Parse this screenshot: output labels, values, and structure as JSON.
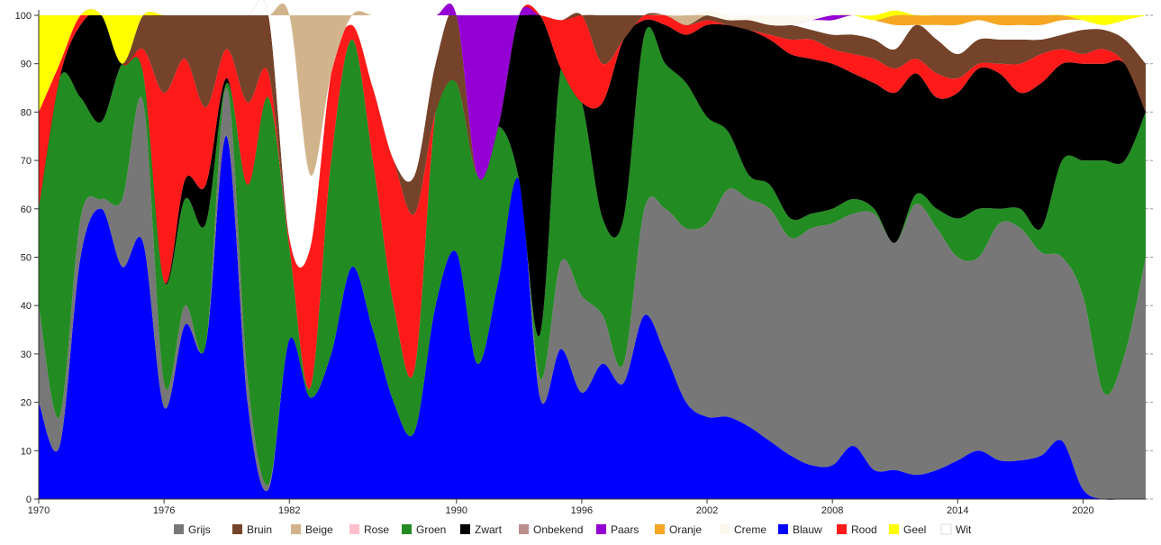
{
  "chart_data": {
    "type": "stacked_area",
    "x": [
      1970,
      1971,
      1972,
      1973,
      1974,
      1975,
      1976,
      1977,
      1978,
      1979,
      1980,
      1981,
      1982,
      1983,
      1984,
      1985,
      1986,
      1987,
      1988,
      1989,
      1990,
      1991,
      1992,
      1993,
      1994,
      1995,
      1996,
      1997,
      1998,
      1999,
      2000,
      2001,
      2002,
      2003,
      2004,
      2005,
      2006,
      2007,
      2008,
      2009,
      2010,
      2011,
      2012,
      2013,
      2014,
      2015,
      2016,
      2017,
      2018,
      2019,
      2020,
      2021,
      2022,
      2023
    ],
    "xlim": [
      1970,
      2023
    ],
    "xticks": [
      1970,
      1976,
      1982,
      1990,
      1996,
      2002,
      2008,
      2014,
      2020
    ],
    "ylim": [
      0,
      100
    ],
    "yticks": [
      0,
      10,
      20,
      30,
      40,
      50,
      60,
      70,
      80,
      90,
      100
    ],
    "legend": "bottom",
    "series": [
      {
        "name": "Grijs",
        "color": "#777777",
        "values": [
          20,
          6,
          8,
          2,
          14,
          29,
          5,
          4,
          0,
          10,
          5,
          1,
          0,
          0,
          0,
          0,
          0,
          0,
          0,
          0,
          0,
          0,
          0,
          0,
          4,
          18,
          20,
          10,
          4,
          22,
          30,
          36,
          40,
          47,
          47,
          48,
          45,
          49,
          50,
          48,
          53,
          47,
          56,
          50,
          42,
          40,
          49,
          48,
          42,
          38,
          40,
          22,
          30,
          50
        ]
      },
      {
        "name": "Bruin",
        "color": "#74432a",
        "values": [
          0,
          0,
          0,
          0,
          0,
          7,
          16,
          9,
          19,
          7,
          18,
          12,
          0,
          0,
          0,
          0,
          0,
          0,
          8,
          10,
          14,
          0,
          0,
          0,
          0,
          0,
          0,
          10,
          5,
          0,
          0,
          0,
          1,
          1,
          2,
          2,
          3,
          2,
          3,
          4,
          4,
          4,
          7,
          7,
          5,
          5,
          5,
          5,
          3,
          3,
          5,
          4,
          5,
          10
        ]
      },
      {
        "name": "Beige",
        "color": "#d2b48c",
        "values": [
          0,
          0,
          0,
          0,
          0,
          0,
          0,
          0,
          0,
          0,
          0,
          0,
          0,
          33,
          12,
          0,
          0,
          0,
          0,
          0,
          0,
          0,
          0,
          0,
          0,
          0,
          0,
          0,
          0,
          0,
          0,
          2,
          0,
          0,
          0,
          0,
          0,
          0,
          0,
          0,
          0,
          0,
          0,
          0,
          0,
          0,
          0,
          0,
          0,
          0,
          0,
          0,
          0,
          0
        ]
      },
      {
        "name": "Rose",
        "color": "#ffc0cb",
        "values": [
          0,
          0,
          0,
          0,
          0,
          0,
          0,
          0,
          0,
          0,
          0,
          0,
          0,
          0,
          0,
          0,
          0,
          0,
          0,
          0,
          0,
          0,
          0,
          0,
          0,
          0,
          0,
          0,
          0,
          0,
          0,
          0,
          0,
          0,
          0,
          0,
          0,
          0,
          0,
          0,
          0,
          0,
          0,
          0,
          0,
          0,
          0,
          0,
          0,
          0,
          0,
          0,
          0,
          0
        ]
      },
      {
        "name": "Groen",
        "color": "#228b22",
        "values": [
          20,
          70,
          25,
          16,
          28,
          6,
          21,
          22,
          25,
          1,
          40,
          80,
          19,
          2,
          40,
          47,
          35,
          20,
          13,
          40,
          35,
          39,
          32,
          0,
          9,
          40,
          40,
          20,
          30,
          36,
          30,
          30,
          22,
          12,
          5,
          5,
          4,
          3,
          3,
          3,
          1,
          0,
          2,
          4,
          8,
          10,
          3,
          4,
          5,
          20,
          28,
          48,
          40,
          30
        ]
      },
      {
        "name": "Zwart",
        "color": "#000000",
        "values": [
          0,
          0,
          15,
          22,
          0,
          0,
          0,
          4,
          8,
          1,
          0,
          0,
          0,
          0,
          0,
          0,
          0,
          0,
          0,
          0,
          0,
          0,
          0,
          34,
          66,
          0,
          0,
          24,
          37,
          3,
          8,
          10,
          19,
          22,
          30,
          30,
          34,
          32,
          30,
          26,
          26,
          31,
          25,
          23,
          26,
          29,
          28,
          24,
          30,
          20,
          20,
          20,
          20,
          0
        ]
      },
      {
        "name": "Onbekend",
        "color": "#bc8f8f",
        "values": [
          0,
          0,
          0,
          0,
          0,
          0,
          0,
          0,
          0,
          0,
          0,
          0,
          0,
          0,
          0,
          0,
          0,
          0,
          0,
          0,
          0,
          0,
          0,
          0,
          0,
          0,
          0,
          0,
          0,
          0,
          0,
          0,
          0,
          0,
          0,
          0,
          0,
          0,
          0,
          0,
          0,
          0,
          0,
          0,
          0,
          0,
          0,
          0,
          0,
          0,
          0,
          0,
          0,
          0
        ]
      },
      {
        "name": "Paars",
        "color": "#9400d3",
        "values": [
          0,
          0,
          0,
          0,
          0,
          0,
          0,
          0,
          0,
          0,
          0,
          0,
          0,
          0,
          0,
          0,
          0,
          0,
          0,
          0,
          0,
          33,
          23,
          0,
          0,
          0,
          0,
          0,
          0,
          0,
          0,
          0,
          0,
          0,
          0,
          0,
          0,
          0,
          1,
          0,
          0,
          0,
          0,
          0,
          0,
          0,
          0,
          0,
          0,
          0,
          0,
          0,
          0,
          0
        ]
      },
      {
        "name": "Oranje",
        "color": "#f5a623",
        "values": [
          0,
          0,
          0,
          0,
          0,
          0,
          0,
          0,
          0,
          0,
          0,
          0,
          0,
          0,
          0,
          0,
          0,
          0,
          0,
          0,
          0,
          0,
          0,
          0,
          0,
          0,
          0,
          0,
          0,
          0,
          0,
          0,
          0,
          0,
          0,
          0,
          0,
          0,
          0,
          0,
          0,
          2,
          2,
          2,
          2,
          1,
          2,
          2,
          2,
          1,
          0,
          0,
          0,
          0
        ]
      },
      {
        "name": "Creme",
        "color": "#fbf8ee",
        "values": [
          0,
          0,
          0,
          0,
          0,
          0,
          0,
          0,
          0,
          0,
          0,
          0,
          0,
          0,
          0,
          0,
          0,
          0,
          0,
          0,
          0,
          0,
          0,
          0,
          0,
          0,
          0,
          0,
          0,
          0,
          0,
          0,
          1,
          1,
          1,
          2,
          2,
          1,
          0,
          0,
          0,
          0,
          0,
          0,
          0,
          0,
          0,
          0,
          0,
          0,
          0,
          0,
          0,
          0
        ]
      },
      {
        "name": "Blauw",
        "color": "#0000ff",
        "values": [
          20,
          11,
          50,
          60,
          48,
          53,
          19,
          36,
          32,
          75,
          20,
          2,
          33,
          21,
          30,
          48,
          35,
          20,
          14,
          40,
          51,
          28,
          45,
          66,
          21,
          31,
          22,
          28,
          24,
          38,
          30,
          20,
          17,
          17,
          15,
          12,
          9,
          7,
          7,
          11,
          6,
          6,
          5,
          6,
          8,
          10,
          8,
          8,
          9,
          12,
          2,
          0,
          0,
          0
        ]
      },
      {
        "name": "Rood",
        "color": "#ff1a1a",
        "values": [
          20,
          3,
          2,
          0,
          0,
          5,
          39,
          25,
          16,
          6,
          17,
          5,
          2,
          29,
          18,
          3,
          15,
          30,
          32,
          0,
          0,
          0,
          0,
          0,
          0,
          10,
          18,
          8,
          0,
          1,
          2,
          2,
          1,
          0,
          0,
          1,
          3,
          4,
          3,
          4,
          5,
          5,
          3,
          5,
          3,
          1,
          2,
          6,
          6,
          3,
          2,
          3,
          0,
          0
        ]
      },
      {
        "name": "Geel",
        "color": "#ffff00",
        "values": [
          20,
          10,
          0,
          0,
          10,
          0,
          0,
          0,
          0,
          0,
          0,
          0,
          0,
          0,
          0,
          0,
          0,
          0,
          0,
          0,
          0,
          0,
          0,
          0,
          0,
          0,
          0,
          0,
          0,
          0,
          0,
          0,
          0,
          0,
          0,
          0,
          0,
          0,
          0,
          0,
          1,
          1,
          0,
          0,
          0,
          0,
          0,
          0,
          0,
          0,
          1,
          2,
          1,
          0
        ]
      },
      {
        "name": "Wit",
        "color": "#ffffff",
        "values": [
          0,
          0,
          0,
          0,
          0,
          0,
          0,
          0,
          0,
          0,
          0,
          0,
          46,
          15,
          0,
          2,
          15,
          30,
          33,
          10,
          0,
          0,
          0,
          0,
          0,
          0,
          0,
          0,
          0,
          0,
          0,
          0,
          0,
          0,
          0,
          0,
          0,
          2,
          3,
          4,
          4,
          5,
          0,
          3,
          6,
          4,
          3,
          3,
          3,
          3,
          2,
          1,
          4,
          10
        ]
      }
    ]
  }
}
